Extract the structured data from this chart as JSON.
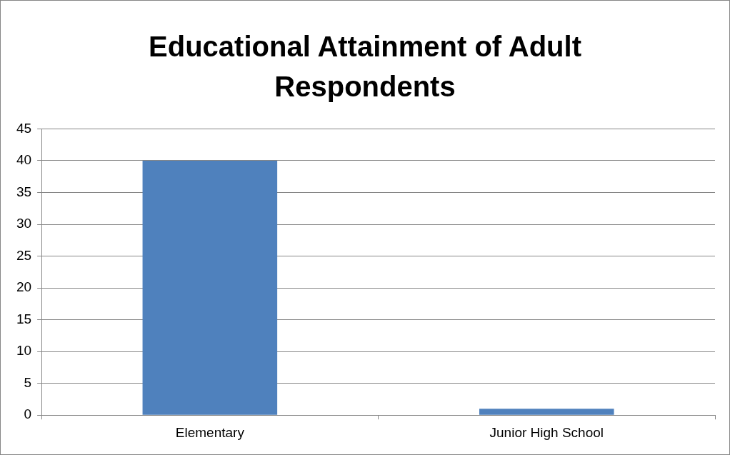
{
  "chart_data": {
    "type": "bar",
    "title": "Educational Attainment of Adult Respondents",
    "categories": [
      "Elementary",
      "Junior High School"
    ],
    "values": [
      40,
      1
    ],
    "color": "#4f81bd",
    "ylim": [
      0,
      45
    ],
    "yticks": [
      0,
      5,
      10,
      15,
      20,
      25,
      30,
      35,
      40,
      45
    ],
    "grid": "y",
    "legend": false
  }
}
